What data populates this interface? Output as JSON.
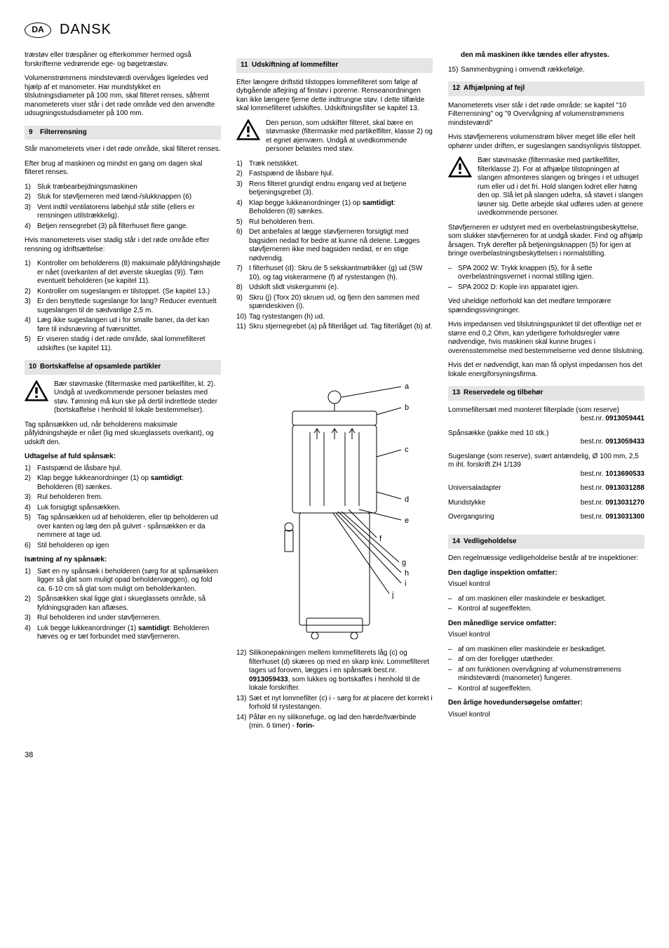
{
  "header": {
    "badge": "DA",
    "language": "DANSK"
  },
  "page_number": "38",
  "col1": {
    "intro1": "træstøv eller træspåner og efterkommer hermed også forskrifterne vedrørende ege- og bøgetræstøv.",
    "intro2": "Volumenstrømmens mindsteværdi overvåges ligeledes ved hjælp af et manometer. Har mundstykket en tilslutningsdiameter på 100 mm, skal filteret renses, såfremt manometerets viser står i det røde område ved den anvendte udsugningsstudsdiameter på 100 mm.",
    "s9": {
      "num": "9",
      "title": "Filterrensning"
    },
    "s9_p1": "Står manometerets viser i det røde område, skal filteret renses.",
    "s9_p2": "Efter brug af maskinen og mindst en gang om dagen skal filteret renses.",
    "s9_list1": [
      "Sluk træbearbejdningsmaskinen",
      "Sluk for støvfjerneren med tænd-/slukknappen (6)",
      "Vent indtil ventilatorens løbehjul står stille (ellers er rensningen utilstrækkelig).",
      "Betjen rensegrebet (3) på filterhuset flere gange."
    ],
    "s9_p3": "Hvis manometerets viser stadig står i det røde område efter rensning og idriftsættelse:",
    "s9_list2": [
      "Kontroller om beholderens (8) maksimale påfyldningshøjde er nået (overkanten af det øverste skueglas (9)). Tøm eventuelt beholderen (se kapitel 11).",
      "Kontroller om sugeslangen er tilstoppet. (Se kapitel 13.)",
      "Er den benyttede sugeslange for lang? Reducer eventuelt sugeslangen til de sædvanlige 2,5 m.",
      "Læg ikke sugeslangen ud i for smalle baner, da det kan føre til indsnævring af tværsnittet.",
      "Er viseren stadig i det røde område, skal lommefilteret udskiftes (se kapitel 11)."
    ],
    "s10": {
      "num": "10",
      "title": "Bortskaffelse af opsamlede partikler"
    },
    "s10_warn": "Bær støvmaske (filtermaske med partikelfilter, kl. 2). Undgå at uvedkommende personer belastes med støv. Tømning må kun ske på dertil indrettede steder (bortskaffelse i henhold til lokale bestemmelser).",
    "s10_p1": "Tag spånsækken ud, når beholderens maksimale påfyldningshøjde er nået (lig med skueglassets overkant), og udskift den.",
    "s10_sub1": "Udtagelse af fuld spånsæk:",
    "s10_list1": [
      "Fastspænd de låsbare hjul.",
      "Klap begge lukkeanordninger (1) op <b>samtidigt</b>: Beholderen (8) sænkes.",
      "Rul beholderen frem.",
      "Luk forsigtigt spånsækken.",
      "Tag spånsækken ud af beholderen, eller tip beholderen ud over kanten og læg den på gulvet - spånsækken er da nemmere at tage ud.",
      "Stil beholderen op igen"
    ],
    "s10_sub2": "Isætning af ny spånsæk:",
    "s10_list2": [
      "Sæt en ny spånsæk i beholderen (sørg for at spånsækken ligger så glat som muligt opad beholdervæggen), og fold ca. 6-10 cm så glat som muligt om beholderkanten.",
      "Spånsækken skal ligge glat i skueglassets område, så fyldningsgraden kan aflæses.",
      "Rul beholderen ind under støvfjerneren.",
      "Luk begge lukkeanordninger (1) <b>samtidigt</b>: Beholderen hæves og er tæt forbundet med støvfjerneren."
    ]
  },
  "col2": {
    "s11": {
      "num": "11",
      "title": "Udskiftning af lommefilter"
    },
    "s11_p1": "Efter længere driftstid tilstoppes lommefilteret som følge af dybgående aflejring af finstøv i porerne. Renseanordningen kan ikke længere fjerne dette indtrungne støv. I dette tilfælde skal lommefilteret udskiftes. Udskiftningsfilter se kapitel 13.",
    "s11_warn": "Den person, som udskifter filteret, skal bære en støvmaske (filtermaske med partikelfilter, klasse 2) og et egnet øjenværn. Undgå at uvedkommende personer belastes med støv.",
    "s11_list": [
      "Træk netstikket.",
      "Fastspænd de låsbare hjul.",
      "Rens filteret grundigt endnu engang ved at betjene betjeningsgrebet (3).",
      "Klap begge lukkeanordninger (1) op <b>samtidigt</b>: Beholderen (8) sænkes.",
      "Rul beholderen frem.",
      "Det anbefales at lægge støvfjerneren forsigtigt med bagsiden nedad for bedre at kunne nå delene. Lægges støvfjerneren ikke med bagsiden nedad, er en stige nødvendig.",
      "I filterhuset (d): Skru de 5 sekskantmøtrikker (g) ud (SW 10), og tag viskerarmene (f) af rystestangen (h).",
      "Udskift slidt viskergummi (e).",
      "Skru (j) (Torx 20) skruen ud, og fjern den sammen med spændeskiven (i).",
      "Tag rystestangen (h) ud.",
      "Skru stjernegrebet (a) på filterlåget ud. Tag filterlåget (b) af."
    ],
    "diagram_labels": [
      "a",
      "b",
      "c",
      "d",
      "e",
      "f",
      "g",
      "h",
      "i",
      "j"
    ],
    "s11_list2": [
      "Silikonepakningen mellem lommefilterets låg (c) og filterhuset (d) skæres op med en skarp kniv. Lommefilteret tages ud foroven, lægges i en spånsæk best.nr. <b>0913059433</b>, som lukkes og bortskaffes i henhold til de lokale forskrifter.",
      "Sæt et nyt lommefilter (c) i - sørg for at placere det korrekt i forhold til rystestangen.",
      "Påfør en ny silikonefuge, og lad den hærde/tværbinde (min. 6 timer) - <b>forin-</b>"
    ],
    "s11_list2_start": 12
  },
  "col3": {
    "cont1": "<b>den må maskinen ikke tændes eller afrystes.</b>",
    "cont_item": "Sammenbygning i omvendt rækkefølge.",
    "s12": {
      "num": "12",
      "title": "Afhjælpning af fejl"
    },
    "s12_p1": "Manometerets viser står i det røde område: se kapitel \"10 Filterrensning\" og \"9 Overvågning af volumenstrømmens mindsteværdi\"",
    "s12_p2": "Hvis støvfjernerens volumenstrøm bliver meget lille eller helt ophører under driften, er sugeslangen sandsynligvis tilstoppet.",
    "s12_warn": "Bær støvmaske (filtermaske med partikelfilter, filterklasse 2). For at afhjælpe tilstopningen af slangen afmonteres slangen og bringes i et udsuget rum eller ud i det fri. Hold slangen lodret eller hæng den op. Slå let på slangen udefra, så støvet i slangen løsner sig. Dette arbejde skal udføres uden at genere uvedkommende personer.",
    "s12_p3": "Støvfjerneren er udstyret med en overbelastningsbeskyttelse, som slukker støvfjerneren for at undgå skader. Find og afhjælp årsagen. Tryk derefter på betjeningsknappen (5) for igen at bringe overbelastningsbeskyttelsen i normalstilling.",
    "s12_dash": [
      "SPA 2002 W: Trykk knappen (5), for å sette overbelastningsvernet i normal stilling igjen.",
      "SPA 2002 D: Kople inn apparatet igjen."
    ],
    "s12_p4": "Ved uheldige netforhold kan det medføre temporære spændingssvingninger.",
    "s12_p5": "Hvis impedansen ved tilslutningspunktet til det offentlige net er større end 0,2 Ohm, kan yderligere forholdsregler være nødvendige, hvis maskinen skal kunne bruges i overensstemmelse med bestemmelserne ved denne tilslutning.",
    "s12_p6": "Hvis det er nødvendigt, kan man få oplyst impedansen hos det lokale energiforsyningsfirma.",
    "s13": {
      "num": "13",
      "title": "Reservedele og tilbehør"
    },
    "parts": [
      {
        "name": "Lommefiltersæt med monteret filterplade (som reserve)",
        "label": "best.nr.",
        "num": "0913059441"
      },
      {
        "name": "Spånsække (pakke med 10 stk.)",
        "label": "best.nr.",
        "num": "0913059433"
      },
      {
        "name": "Sugeslange (som reserve), svært antændelig, Ø 100 mm, 2,5 m iht. forskrift ZH 1/139",
        "label": "best.nr.",
        "num": "1013690533"
      },
      {
        "name": "Universaladapter",
        "label": "best.nr.",
        "num": "0913031288"
      },
      {
        "name": "Mundstykke",
        "label": "best.nr.",
        "num": "0913031270"
      },
      {
        "name": "Overgangsring",
        "label": "best.nr.",
        "num": "0913031300"
      }
    ],
    "s14": {
      "num": "14",
      "title": "Vedligeholdelse"
    },
    "s14_p1": "Den regelmæssige vedligeholdelse består af tre inspektioner:",
    "s14_sub1": "Den daglige inspektion omfatter:",
    "s14_vis": "Visuel kontrol",
    "s14_dash1": [
      "af om maskinen eller maskindele er beskadiget.",
      "Kontrol af sugeeffekten."
    ],
    "s14_sub2": "Den månedlige service omfatter:",
    "s14_dash2": [
      "af om maskinen eller maskindele er beskadiget.",
      "af om der foreligger utætheder.",
      "af om funktionen overvågning af volumenstrømmens mindsteværdi (manometer) fungerer.",
      "Kontrol af sugeeffekten."
    ],
    "s14_sub3": "Den årlige hovedundersøgelse omfatter:"
  }
}
